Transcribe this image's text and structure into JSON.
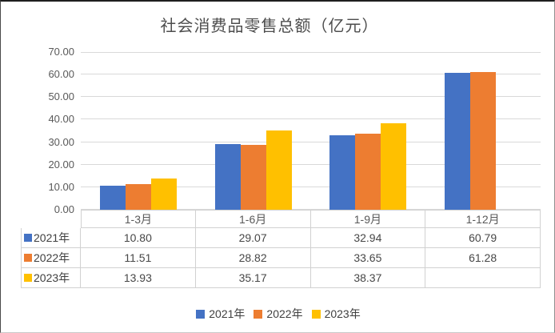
{
  "title": "社会消费品零售总额（亿元）",
  "chart_data": {
    "type": "bar",
    "title": "社会消费品零售总额（亿元）",
    "categories": [
      "1-3月",
      "1-6月",
      "1-9月",
      "1-12月"
    ],
    "series": [
      {
        "name": "2021年",
        "color": "#4472C4",
        "values": [
          10.8,
          29.07,
          32.94,
          60.79
        ]
      },
      {
        "name": "2022年",
        "color": "#ED7D31",
        "values": [
          11.51,
          28.82,
          33.65,
          61.28
        ]
      },
      {
        "name": "2023年",
        "color": "#FFC000",
        "values": [
          13.93,
          35.17,
          38.37,
          null
        ]
      }
    ],
    "ylim": [
      0,
      70
    ],
    "ytick_step": 10,
    "ytick_labels": [
      "0.00",
      "10.00",
      "20.00",
      "30.00",
      "40.00",
      "50.00",
      "60.00",
      "70.00"
    ],
    "grid": true,
    "legend_position": "bottom",
    "legend_labels": [
      "2021年",
      "2022年",
      "2023年"
    ],
    "data_table": {
      "shown": true,
      "column_headers": [
        "1-3月",
        "1-6月",
        "1-9月",
        "1-12月"
      ],
      "row_headers": [
        "2021年",
        "2022年",
        "2023年"
      ],
      "cells": [
        [
          "10.80",
          "29.07",
          "32.94",
          "60.79"
        ],
        [
          "11.51",
          "28.82",
          "33.65",
          "61.28"
        ],
        [
          "13.93",
          "35.17",
          "38.37",
          ""
        ]
      ]
    }
  },
  "colors": {
    "series_2021": "#4472C4",
    "series_2022": "#ED7D31",
    "series_2023": "#FFC000",
    "gridline": "#D9D9D9",
    "table_border": "#D1D1D1",
    "axis_text": "#595959",
    "value_text": "#474747"
  }
}
